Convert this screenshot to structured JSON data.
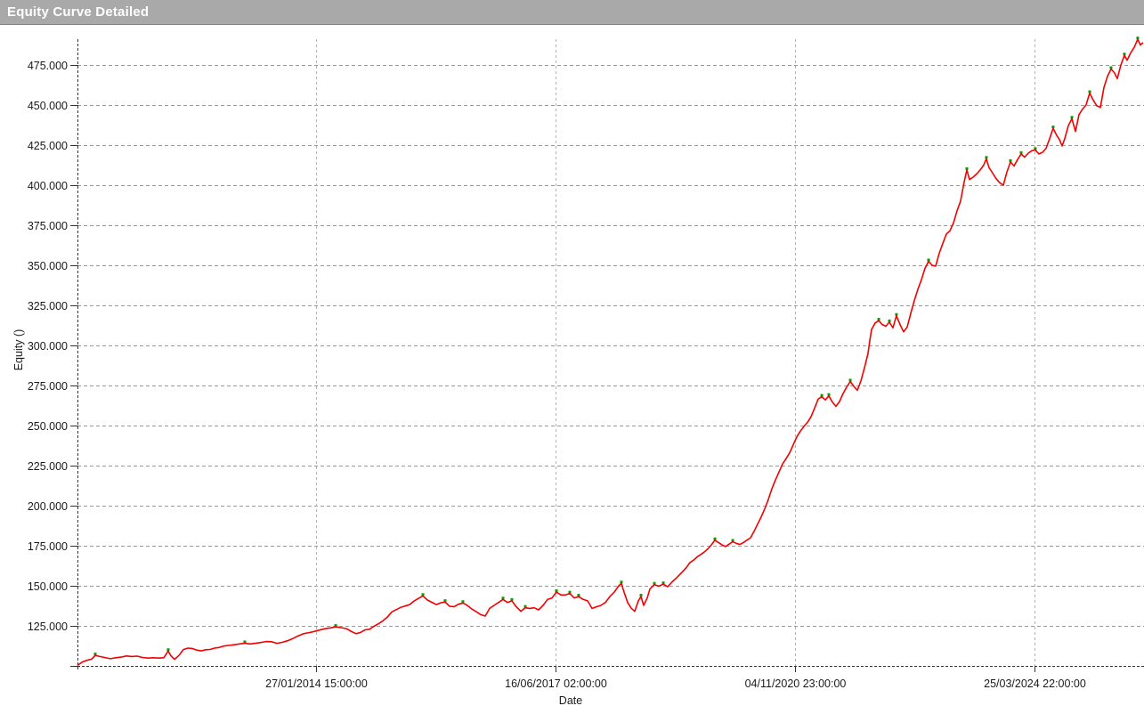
{
  "window": {
    "title": "Equity Curve Detailed"
  },
  "colors": {
    "titlebar_bg": "#a9a9a9",
    "titlebar_text": "#ffffff",
    "titlebar_border": "#828282",
    "plot_bg": "#ffffff",
    "curve": "#f40000",
    "marker": "#00a000",
    "grid_h": "#999999",
    "grid_v": "#b3b3b3",
    "axis": "#333333",
    "tick_text": "#1a1a1a"
  },
  "chart_data": {
    "type": "line",
    "title": "",
    "xlabel": "Date",
    "ylabel": "Equity ()",
    "grid": true,
    "legend": false,
    "y_range": [
      100,
      491
    ],
    "y_ticks": [
      {
        "value": 100,
        "label": ""
      },
      {
        "value": 125,
        "label": "125.000"
      },
      {
        "value": 150,
        "label": "150.000"
      },
      {
        "value": 175,
        "label": "175.000"
      },
      {
        "value": 200,
        "label": "200.000"
      },
      {
        "value": 225,
        "label": "225.000"
      },
      {
        "value": 250,
        "label": "250.000"
      },
      {
        "value": 275,
        "label": "275.000"
      },
      {
        "value": 300,
        "label": "300.000"
      },
      {
        "value": 325,
        "label": "325.000"
      },
      {
        "value": 350,
        "label": "350.000"
      },
      {
        "value": 375,
        "label": "375.000"
      },
      {
        "value": 400,
        "label": "400.000"
      },
      {
        "value": 425,
        "label": "425.000"
      },
      {
        "value": 450,
        "label": "450.000"
      },
      {
        "value": 475,
        "label": "475.000"
      }
    ],
    "x_ticks": [
      {
        "pos": 0.2237,
        "label": "27/01/2014 15:00:00"
      },
      {
        "pos": 0.4482,
        "label": "16/06/2017 02:00:00"
      },
      {
        "pos": 0.6728,
        "label": "04/11/2020 23:00:00"
      },
      {
        "pos": 0.8973,
        "label": "25/03/2024 22:00:00"
      }
    ],
    "series": [
      {
        "name": "equity",
        "color": "#f40000",
        "marker_color": "#00a000",
        "points": [
          [
            0.0,
            100.3
          ],
          [
            0.0042,
            102.3
          ],
          [
            0.0083,
            103.4
          ],
          [
            0.0134,
            104.3
          ],
          [
            0.0167,
            106.6
          ],
          [
            0.0209,
            105.9
          ],
          [
            0.0259,
            105.2
          ],
          [
            0.0309,
            104.5
          ],
          [
            0.0359,
            105.1
          ],
          [
            0.0409,
            105.5
          ],
          [
            0.0459,
            106.2
          ],
          [
            0.0509,
            105.9
          ],
          [
            0.0559,
            106.1
          ],
          [
            0.0609,
            105.3
          ],
          [
            0.0659,
            104.9
          ],
          [
            0.0709,
            105.1
          ],
          [
            0.076,
            104.9
          ],
          [
            0.081,
            105.1
          ],
          [
            0.0851,
            109.3
          ],
          [
            0.0876,
            106.4
          ],
          [
            0.091,
            104.1
          ],
          [
            0.0951,
            106.5
          ],
          [
            0.0993,
            110.2
          ],
          [
            0.1035,
            111.1
          ],
          [
            0.1077,
            110.9
          ],
          [
            0.1118,
            109.9
          ],
          [
            0.116,
            109.4
          ],
          [
            0.1202,
            110.1
          ],
          [
            0.1244,
            110.3
          ],
          [
            0.1285,
            111.1
          ],
          [
            0.1327,
            111.5
          ],
          [
            0.1369,
            112.4
          ],
          [
            0.1419,
            112.8
          ],
          [
            0.1469,
            113.2
          ],
          [
            0.1519,
            113.7
          ],
          [
            0.1569,
            114.2
          ],
          [
            0.1619,
            113.7
          ],
          [
            0.1669,
            114.1
          ],
          [
            0.1719,
            114.6
          ],
          [
            0.177,
            115.2
          ],
          [
            0.182,
            115.1
          ],
          [
            0.187,
            114.1
          ],
          [
            0.192,
            114.7
          ],
          [
            0.197,
            115.7
          ],
          [
            0.202,
            117.1
          ],
          [
            0.207,
            118.8
          ],
          [
            0.212,
            120.1
          ],
          [
            0.217,
            120.8
          ],
          [
            0.222,
            121.5
          ],
          [
            0.227,
            122.4
          ],
          [
            0.232,
            123.2
          ],
          [
            0.2371,
            123.7
          ],
          [
            0.2421,
            124.4
          ],
          [
            0.2471,
            123.9
          ],
          [
            0.2521,
            123.3
          ],
          [
            0.2571,
            121.4
          ],
          [
            0.2613,
            120.1
          ],
          [
            0.2654,
            120.9
          ],
          [
            0.2696,
            122.5
          ],
          [
            0.2738,
            122.9
          ],
          [
            0.278,
            124.7
          ],
          [
            0.2821,
            126.3
          ],
          [
            0.2863,
            128.1
          ],
          [
            0.2905,
            130.4
          ],
          [
            0.2947,
            133.7
          ],
          [
            0.2988,
            135.1
          ],
          [
            0.303,
            136.5
          ],
          [
            0.3072,
            137.4
          ],
          [
            0.3114,
            138.2
          ],
          [
            0.3155,
            140.5
          ],
          [
            0.3197,
            142.1
          ],
          [
            0.3239,
            143.7
          ],
          [
            0.3281,
            141.1
          ],
          [
            0.3322,
            139.7
          ],
          [
            0.3364,
            138.3
          ],
          [
            0.3406,
            139.4
          ],
          [
            0.3447,
            139.9
          ],
          [
            0.3489,
            137.2
          ],
          [
            0.3531,
            136.9
          ],
          [
            0.3573,
            138.5
          ],
          [
            0.3614,
            139.3
          ],
          [
            0.3656,
            137.7
          ],
          [
            0.3698,
            135.5
          ],
          [
            0.374,
            133.8
          ],
          [
            0.3781,
            132.0
          ],
          [
            0.3823,
            131.1
          ],
          [
            0.3865,
            135.9
          ],
          [
            0.3906,
            137.8
          ],
          [
            0.3948,
            139.6
          ],
          [
            0.399,
            141.5
          ],
          [
            0.4032,
            139.6
          ],
          [
            0.4073,
            140.6
          ],
          [
            0.4115,
            136.9
          ],
          [
            0.4157,
            134.1
          ],
          [
            0.4199,
            136.3
          ],
          [
            0.424,
            135.9
          ],
          [
            0.4282,
            136.3
          ],
          [
            0.4324,
            135.0
          ],
          [
            0.4366,
            137.8
          ],
          [
            0.4407,
            141.5
          ],
          [
            0.4449,
            142.4
          ],
          [
            0.4491,
            146.1
          ],
          [
            0.4533,
            144.3
          ],
          [
            0.4574,
            144.3
          ],
          [
            0.4616,
            145.2
          ],
          [
            0.4658,
            142.4
          ],
          [
            0.4699,
            143.3
          ],
          [
            0.4741,
            141.5
          ],
          [
            0.4783,
            140.6
          ],
          [
            0.4825,
            135.9
          ],
          [
            0.4866,
            136.9
          ],
          [
            0.4908,
            137.8
          ],
          [
            0.495,
            139.6
          ],
          [
            0.4992,
            143.3
          ],
          [
            0.5033,
            146.1
          ],
          [
            0.5075,
            150.0
          ],
          [
            0.51,
            151.5
          ],
          [
            0.5125,
            146.0
          ],
          [
            0.5159,
            139.6
          ],
          [
            0.5192,
            136.0
          ],
          [
            0.5225,
            134.1
          ],
          [
            0.5259,
            140.6
          ],
          [
            0.5284,
            143.3
          ],
          [
            0.5309,
            137.8
          ],
          [
            0.5342,
            142.4
          ],
          [
            0.5367,
            148.0
          ],
          [
            0.5409,
            150.7
          ],
          [
            0.5451,
            149.8
          ],
          [
            0.5493,
            151.0
          ],
          [
            0.5534,
            149.4
          ],
          [
            0.5576,
            152.5
          ],
          [
            0.5618,
            155.0
          ],
          [
            0.5676,
            159.0
          ],
          [
            0.571,
            161.5
          ],
          [
            0.5743,
            164.5
          ],
          [
            0.5776,
            166.0
          ],
          [
            0.581,
            168.0
          ],
          [
            0.5843,
            169.5
          ],
          [
            0.5876,
            171.0
          ],
          [
            0.591,
            173.0
          ],
          [
            0.5943,
            175.5
          ],
          [
            0.5977,
            178.5
          ],
          [
            0.601,
            177.0
          ],
          [
            0.6044,
            175.5
          ],
          [
            0.6077,
            174.5
          ],
          [
            0.611,
            176.0
          ],
          [
            0.6144,
            177.5
          ],
          [
            0.6177,
            176.5
          ],
          [
            0.6211,
            175.8
          ],
          [
            0.6244,
            177.0
          ],
          [
            0.6277,
            178.5
          ],
          [
            0.6311,
            180.0
          ],
          [
            0.6344,
            184.0
          ],
          [
            0.6377,
            188.5
          ],
          [
            0.6411,
            193.0
          ],
          [
            0.6444,
            198.0
          ],
          [
            0.6478,
            204.0
          ],
          [
            0.6511,
            210.5
          ],
          [
            0.6544,
            216.0
          ],
          [
            0.6578,
            221.0
          ],
          [
            0.6611,
            226.0
          ],
          [
            0.6645,
            229.5
          ],
          [
            0.6678,
            233.0
          ],
          [
            0.6711,
            238.0
          ],
          [
            0.6745,
            243.0
          ],
          [
            0.6778,
            246.5
          ],
          [
            0.6812,
            249.5
          ],
          [
            0.6845,
            252.0
          ],
          [
            0.6878,
            255.5
          ],
          [
            0.6912,
            261.0
          ],
          [
            0.6945,
            266.5
          ],
          [
            0.6979,
            268.0
          ],
          [
            0.7012,
            266.0
          ],
          [
            0.7045,
            268.5
          ],
          [
            0.7079,
            264.5
          ],
          [
            0.7112,
            262.0
          ],
          [
            0.7145,
            265.0
          ],
          [
            0.7179,
            270.0
          ],
          [
            0.7212,
            274.0
          ],
          [
            0.7246,
            277.5
          ],
          [
            0.7279,
            274.5
          ],
          [
            0.7312,
            272.0
          ],
          [
            0.7346,
            278.0
          ],
          [
            0.7379,
            286.0
          ],
          [
            0.7412,
            295.0
          ],
          [
            0.7429,
            303.0
          ],
          [
            0.7446,
            310.0
          ],
          [
            0.7479,
            314.0
          ],
          [
            0.7513,
            315.5
          ],
          [
            0.7546,
            313.0
          ],
          [
            0.7579,
            312.0
          ],
          [
            0.7613,
            314.5
          ],
          [
            0.7646,
            311.0
          ],
          [
            0.7679,
            318.5
          ],
          [
            0.7713,
            313.0
          ],
          [
            0.7746,
            308.5
          ],
          [
            0.778,
            311.5
          ],
          [
            0.7813,
            320.0
          ],
          [
            0.7846,
            328.0
          ],
          [
            0.788,
            335.0
          ],
          [
            0.7913,
            341.0
          ],
          [
            0.7946,
            348.0
          ],
          [
            0.798,
            352.5
          ],
          [
            0.8013,
            350.0
          ],
          [
            0.8047,
            349.5
          ],
          [
            0.808,
            357.5
          ],
          [
            0.8113,
            363.5
          ],
          [
            0.8147,
            369.5
          ],
          [
            0.818,
            371.5
          ],
          [
            0.8214,
            376.5
          ],
          [
            0.8247,
            384.0
          ],
          [
            0.828,
            390.0
          ],
          [
            0.8314,
            402.0
          ],
          [
            0.8339,
            409.5
          ],
          [
            0.8364,
            403.5
          ],
          [
            0.8397,
            405.0
          ],
          [
            0.8431,
            407.0
          ],
          [
            0.8464,
            409.5
          ],
          [
            0.8497,
            412.5
          ],
          [
            0.8522,
            416.5
          ],
          [
            0.8547,
            411.0
          ],
          [
            0.8581,
            407.5
          ],
          [
            0.8614,
            404.0
          ],
          [
            0.8648,
            401.5
          ],
          [
            0.8681,
            400.0
          ],
          [
            0.8714,
            408.0
          ],
          [
            0.8748,
            414.5
          ],
          [
            0.8781,
            412.0
          ],
          [
            0.8815,
            416.0
          ],
          [
            0.8848,
            419.5
          ],
          [
            0.8881,
            417.5
          ],
          [
            0.8915,
            420.0
          ],
          [
            0.8948,
            421.5
          ],
          [
            0.8981,
            422.0
          ],
          [
            0.9015,
            419.5
          ],
          [
            0.9048,
            420.5
          ],
          [
            0.9082,
            423.0
          ],
          [
            0.9115,
            429.0
          ],
          [
            0.9148,
            435.5
          ],
          [
            0.9182,
            431.0
          ],
          [
            0.9207,
            428.5
          ],
          [
            0.9232,
            424.5
          ],
          [
            0.9257,
            429.0
          ],
          [
            0.929,
            437.0
          ],
          [
            0.9324,
            441.5
          ],
          [
            0.9357,
            433.5
          ],
          [
            0.9391,
            444.0
          ],
          [
            0.9424,
            447.5
          ],
          [
            0.9457,
            450.0
          ],
          [
            0.9491,
            457.5
          ],
          [
            0.9524,
            453.0
          ],
          [
            0.9558,
            449.5
          ],
          [
            0.9591,
            448.5
          ],
          [
            0.9624,
            461.0
          ],
          [
            0.9658,
            468.0
          ],
          [
            0.9691,
            472.5
          ],
          [
            0.9724,
            470.0
          ],
          [
            0.975,
            466.5
          ],
          [
            0.9783,
            475.0
          ],
          [
            0.9816,
            481.0
          ],
          [
            0.9841,
            478.0
          ],
          [
            0.9875,
            482.5
          ],
          [
            0.9908,
            486.0
          ],
          [
            0.9941,
            491.0
          ],
          [
            0.9967,
            487.5
          ],
          [
            0.9992,
            489.0
          ]
        ]
      }
    ]
  }
}
